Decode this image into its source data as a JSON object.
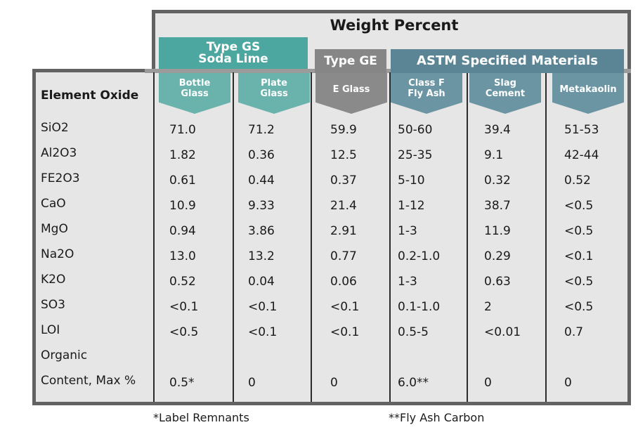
{
  "title": "Weight Percent",
  "groups": {
    "gs_line1": "Type GS",
    "gs_line2": "Soda Lime",
    "ge": "Type GE",
    "astm": "ASTM Specified Materials"
  },
  "colors": {
    "teal": "#4ba7a0",
    "teal_light": "#6ab3ad",
    "gray": "#868686",
    "blue_gray": "#5b8594",
    "panel": "#e6e6e6",
    "border": "#626262"
  },
  "column_header_label": "Element Oxide",
  "columns": [
    {
      "line1": "Bottle",
      "line2": "Glass"
    },
    {
      "line1": "Plate",
      "line2": "Glass"
    },
    {
      "line1": "E Glass",
      "line2": ""
    },
    {
      "line1": "Class F",
      "line2": "Fly Ash"
    },
    {
      "line1": "Slag",
      "line2": "Cement"
    },
    {
      "line1": "Metakaolin",
      "line2": ""
    }
  ],
  "rows": [
    {
      "label": "SiO2",
      "values": [
        "71.0",
        "71.2",
        "59.9",
        "50-60",
        "39.4",
        "51-53"
      ]
    },
    {
      "label": "Al2O3",
      "values": [
        "1.82",
        "0.36",
        "12.5",
        "25-35",
        "9.1",
        "42-44"
      ]
    },
    {
      "label": "FE2O3",
      "values": [
        "0.61",
        "0.44",
        "0.37",
        "5-10",
        "0.32",
        "0.52"
      ]
    },
    {
      "label": "CaO",
      "values": [
        "10.9",
        "9.33",
        "21.4",
        "1-12",
        "38.7",
        "<0.5"
      ]
    },
    {
      "label": "MgO",
      "values": [
        "0.94",
        "3.86",
        "2.91",
        "1-3",
        "11.9",
        "<0.5"
      ]
    },
    {
      "label": "Na2O",
      "values": [
        "13.0",
        "13.2",
        "0.77",
        "0.2-1.0",
        "0.29",
        "<0.1"
      ]
    },
    {
      "label": "K2O",
      "values": [
        "0.52",
        "0.04",
        "0.06",
        "1-3",
        "0.63",
        "<0.5"
      ]
    },
    {
      "label": "SO3",
      "values": [
        "<0.1",
        "<0.1",
        "<0.1",
        "0.1-1.0",
        "2",
        "<0.5"
      ]
    },
    {
      "label": "LOI",
      "values": [
        "<0.5",
        "<0.1",
        "<0.1",
        "0.5-5",
        "<0.01",
        "0.7"
      ]
    },
    {
      "label": "Organic",
      "values": [
        "",
        "",
        "",
        "",
        "",
        ""
      ]
    },
    {
      "label": "Content, Max  %",
      "values": [
        "0.5*",
        "0",
        "0",
        "6.0**",
        "0",
        "0"
      ]
    }
  ],
  "footnotes": {
    "label_remnants": "*Label Remnants",
    "fly_ash_carbon": "**Fly Ash Carbon"
  }
}
